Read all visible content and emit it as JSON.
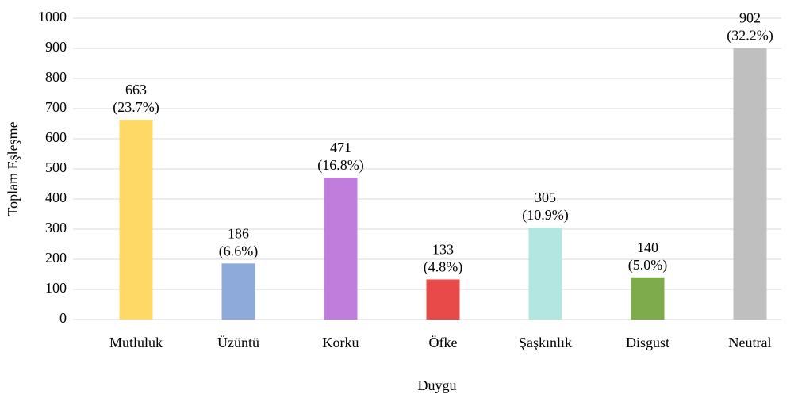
{
  "chart_data": {
    "type": "bar",
    "categories": [
      "Mutluluk",
      "Üzüntü",
      "Korku",
      "Öfke",
      "Şaşkınlık",
      "Disgust",
      "Neutral"
    ],
    "values": [
      663,
      186,
      471,
      133,
      305,
      140,
      902
    ],
    "share_labels": [
      "(23.7%)",
      "(6.6%)",
      "(16.8%)",
      "(4.8%)",
      "(10.9%)",
      "(5.0%)",
      "(32.2%)"
    ],
    "colors": [
      "#ffd966",
      "#8eaadb",
      "#c07ddc",
      "#e84a4a",
      "#b3e6e0",
      "#7fac4a",
      "#bfbfbf"
    ],
    "x_label": "Duygu",
    "y_label": "Toplam Eşleşme",
    "ylim": [
      0,
      1000
    ],
    "yticks": [
      0,
      100,
      200,
      300,
      400,
      500,
      600,
      700,
      800,
      900,
      1000
    ],
    "grid": true
  }
}
